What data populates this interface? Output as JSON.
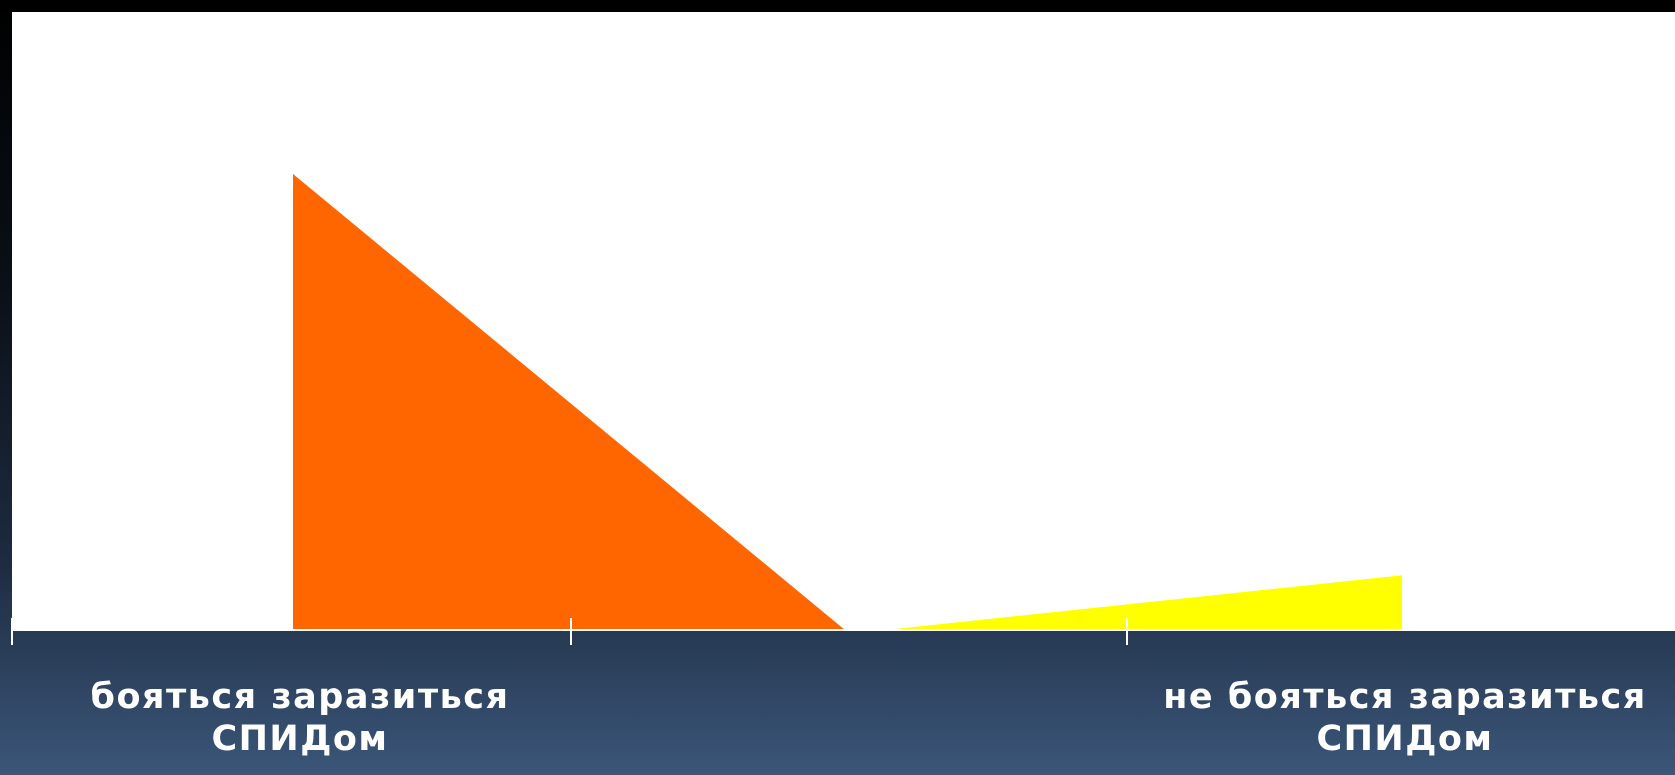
{
  "chart_data": {
    "type": "area",
    "categories": [
      "бояться заразиться СПИДом",
      "не бояться заразиться СПИДом"
    ],
    "series": [
      {
        "values": [
          100,
          0
        ],
        "color": "#ff6600"
      },
      {
        "values": [
          0,
          12
        ],
        "color": "#ffff00"
      }
    ],
    "ylim": [
      0,
      100
    ],
    "grid": false,
    "legend": "none",
    "colors": {
      "plot_background": "#ffffff",
      "axis": "#ffffff",
      "label_text": "#ffffff"
    }
  },
  "labels": {
    "left": "бояться заразиться\nСПИДом",
    "right": "не бояться заразиться\nСПИДом"
  }
}
